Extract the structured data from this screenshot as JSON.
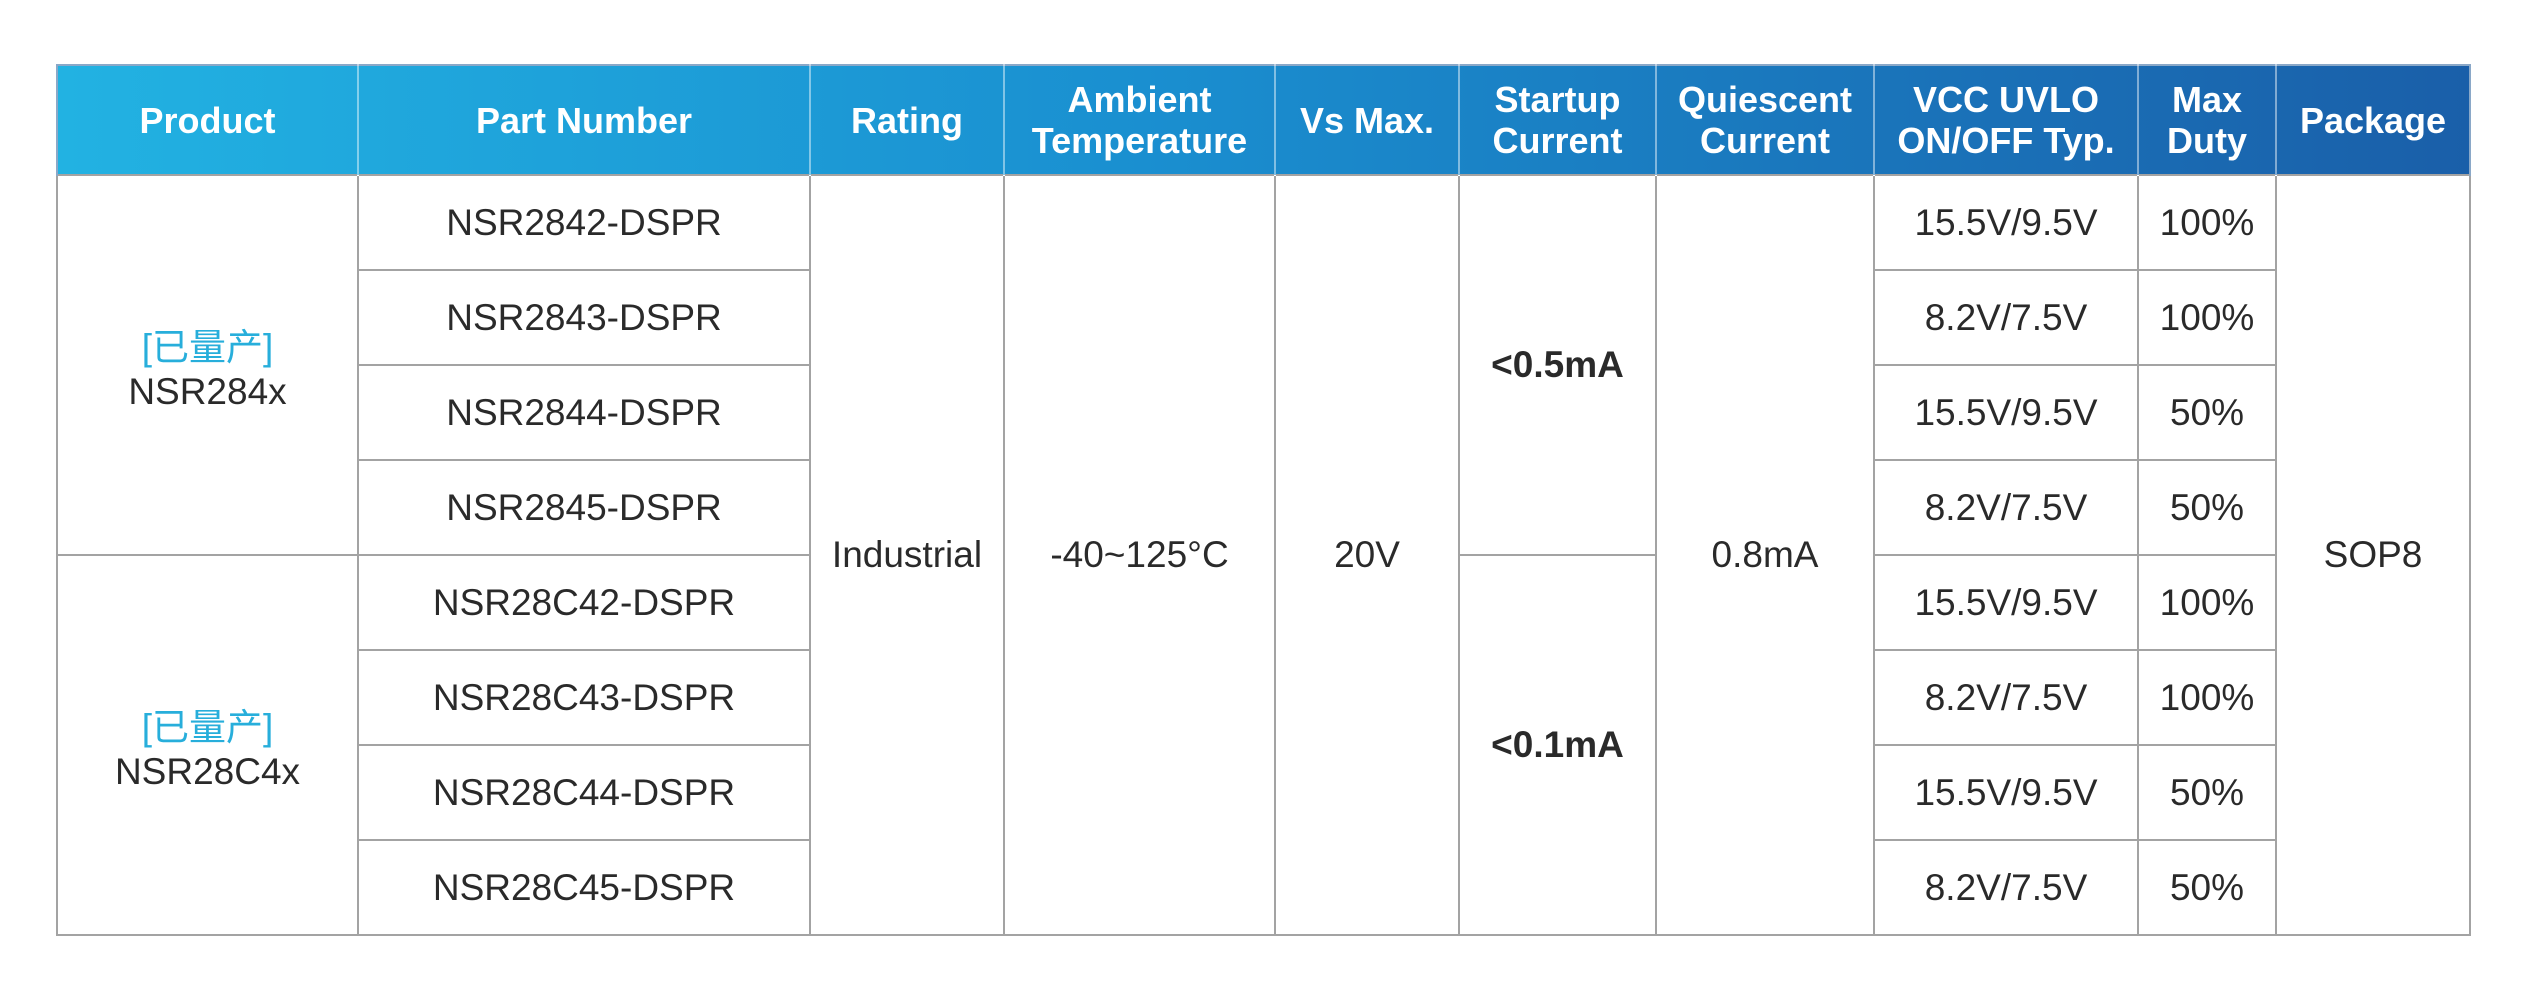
{
  "table": {
    "columns": [
      "Product",
      "Part Number",
      "Rating",
      "Ambient Temperature",
      "Vs Max.",
      "Startup Current",
      "Quiescent Current",
      "VCC UVLO ON/OFF Typ.",
      "Max Duty",
      "Package"
    ],
    "rating": "Industrial",
    "temperature": "-40~125°C",
    "vs_max": "20V",
    "quiescent": "0.8mA",
    "package": "SOP8",
    "groups": [
      {
        "status": "[已量产]",
        "product": "NSR284x",
        "startup": "<0.5mA",
        "parts": [
          {
            "part": "NSR2842-DSPR",
            "uvlo": "15.5V/9.5V",
            "duty": "100%"
          },
          {
            "part": "NSR2843-DSPR",
            "uvlo": "8.2V/7.5V",
            "duty": "100%"
          },
          {
            "part": "NSR2844-DSPR",
            "uvlo": "15.5V/9.5V",
            "duty": "50%"
          },
          {
            "part": "NSR2845-DSPR",
            "uvlo": "8.2V/7.5V",
            "duty": "50%"
          }
        ]
      },
      {
        "status": "[已量产]",
        "product": "NSR28C4x",
        "startup": "<0.1mA",
        "parts": [
          {
            "part": "NSR28C42-DSPR",
            "uvlo": "15.5V/9.5V",
            "duty": "100%"
          },
          {
            "part": "NSR28C43-DSPR",
            "uvlo": "8.2V/7.5V",
            "duty": "100%"
          },
          {
            "part": "NSR28C44-DSPR",
            "uvlo": "15.5V/9.5V",
            "duty": "50%"
          },
          {
            "part": "NSR28C45-DSPR",
            "uvlo": "8.2V/7.5V",
            "duty": "50%"
          }
        ]
      }
    ]
  }
}
